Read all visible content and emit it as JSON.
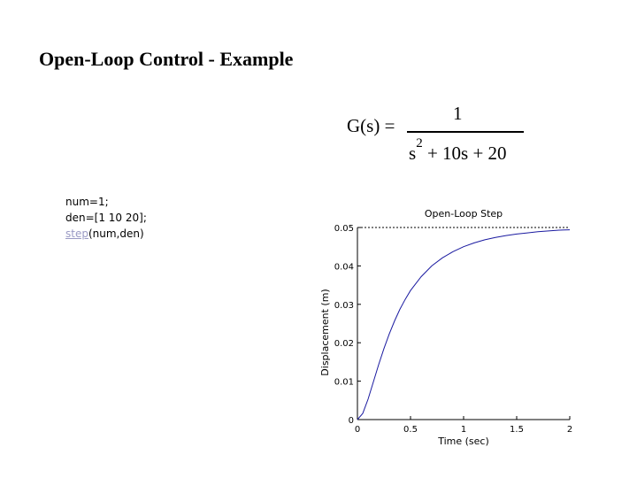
{
  "slide": {
    "title": "Open-Loop Control - Example"
  },
  "formula": {
    "lhs": "G(s) =",
    "numerator": "1",
    "denominator_s": "s",
    "denominator_power": "2",
    "denominator_rest": " + 10s + 20"
  },
  "code": {
    "line1": "num=1;",
    "line2": "den=[1 10 20];",
    "line3_link": "step",
    "line3_rest": "(num,den)"
  },
  "colors": {
    "curve": "#1a1aa0",
    "axes": "#000000",
    "link": "#9a9ac4"
  },
  "chart_data": {
    "type": "line",
    "title": "Open-Loop Step",
    "xlabel": "Time (sec)",
    "ylabel": "Displacement (m)",
    "xlim": [
      0,
      2
    ],
    "ylim": [
      0,
      0.05
    ],
    "xticks": [
      0,
      0.5,
      1,
      1.5,
      2
    ],
    "xtick_labels": [
      "0",
      "0.5",
      "1",
      "1.5",
      "2"
    ],
    "yticks": [
      0,
      0.01,
      0.02,
      0.03,
      0.04,
      0.05
    ],
    "ytick_labels": [
      "0",
      "0.01",
      "0.02",
      "0.03",
      "0.04",
      "0.05"
    ],
    "grid": false,
    "reference_line": {
      "y": 0.05,
      "style": "dashed"
    },
    "series": [
      {
        "x": [
          0,
          0.05,
          0.1,
          0.15,
          0.2,
          0.25,
          0.3,
          0.35,
          0.4,
          0.45,
          0.5,
          0.6,
          0.7,
          0.8,
          0.9,
          1.0,
          1.1,
          1.2,
          1.3,
          1.4,
          1.5,
          1.6,
          1.7,
          1.8,
          1.9,
          2.0
        ],
        "y": [
          0,
          0.0016,
          0.0053,
          0.0098,
          0.0143,
          0.0185,
          0.0223,
          0.0257,
          0.0287,
          0.0313,
          0.0336,
          0.0372,
          0.04,
          0.0421,
          0.0437,
          0.045,
          0.046,
          0.0468,
          0.0474,
          0.0479,
          0.0483,
          0.0486,
          0.0489,
          0.0491,
          0.0493,
          0.0494
        ]
      }
    ]
  }
}
